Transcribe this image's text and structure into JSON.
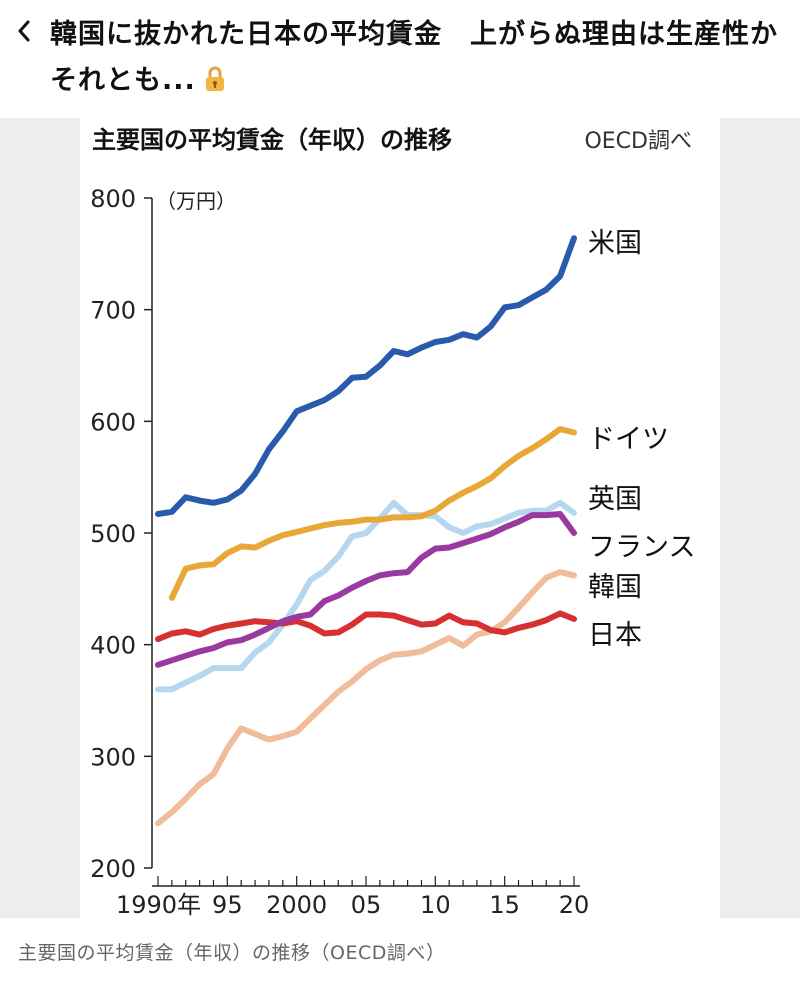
{
  "header": {
    "back_icon": "chevron-left-icon",
    "title": "韓国に抜かれた日本の平均賃金　上がらぬ理由は生産性かそれとも...",
    "lock_icon": "lock-icon"
  },
  "caption": "主要国の平均賃金（年収）の推移（OECD調べ）",
  "colors": {
    "us": "#2a5aab",
    "germany": "#e8a838",
    "uk": "#b6d8ef",
    "france": "#9a3aa0",
    "korea": "#f0bc9a",
    "japan": "#d63030",
    "figure_bg": "#ededed"
  },
  "chart_data": {
    "type": "line",
    "title": "主要国の平均賃金（年収）の推移",
    "source": "OECD調べ",
    "unit_label": "（万円）",
    "ylim": [
      200,
      800
    ],
    "y_ticks": [
      200,
      300,
      400,
      500,
      600,
      700,
      800
    ],
    "xlim": [
      1990,
      2020
    ],
    "x_ticks": [
      {
        "year": 1990,
        "label": "1990年"
      },
      {
        "year": 1995,
        "label": "95"
      },
      {
        "year": 2000,
        "label": "2000"
      },
      {
        "year": 2005,
        "label": "05"
      },
      {
        "year": 2010,
        "label": "10"
      },
      {
        "year": 2015,
        "label": "15"
      },
      {
        "year": 2020,
        "label": "20"
      }
    ],
    "grid": false,
    "series": [
      {
        "key": "us",
        "name": "米国",
        "color": "#2a5aab",
        "x": [
          1990,
          1991,
          1992,
          1993,
          1994,
          1995,
          1996,
          1997,
          1998,
          1999,
          2000,
          2001,
          2002,
          2003,
          2004,
          2005,
          2006,
          2007,
          2008,
          2009,
          2010,
          2011,
          2012,
          2013,
          2014,
          2015,
          2016,
          2017,
          2018,
          2019,
          2020
        ],
        "values": [
          517,
          519,
          532,
          529,
          527,
          530,
          538,
          553,
          575,
          591,
          609,
          614,
          619,
          627,
          639,
          640,
          650,
          663,
          660,
          666,
          671,
          673,
          678,
          675,
          685,
          702,
          704,
          711,
          718,
          730,
          764
        ]
      },
      {
        "key": "germany",
        "name": "ドイツ",
        "color": "#e8a838",
        "x": [
          1991,
          1992,
          1993,
          1994,
          1995,
          1996,
          1997,
          1998,
          1999,
          2000,
          2001,
          2002,
          2003,
          2004,
          2005,
          2006,
          2007,
          2008,
          2009,
          2010,
          2011,
          2012,
          2013,
          2014,
          2015,
          2016,
          2017,
          2018,
          2019,
          2020
        ],
        "values": [
          442,
          468,
          471,
          472,
          482,
          488,
          487,
          493,
          498,
          501,
          504,
          507,
          509,
          510,
          512,
          512,
          514,
          514,
          515,
          520,
          529,
          536,
          542,
          549,
          560,
          569,
          576,
          584,
          593,
          590
        ]
      },
      {
        "key": "uk",
        "name": "英国",
        "color": "#b6d8ef",
        "x": [
          1990,
          1991,
          1992,
          1993,
          1994,
          1995,
          1996,
          1997,
          1998,
          1999,
          2000,
          2001,
          2002,
          2003,
          2004,
          2005,
          2006,
          2007,
          2008,
          2009,
          2010,
          2011,
          2012,
          2013,
          2014,
          2015,
          2016,
          2017,
          2018,
          2019,
          2020
        ],
        "values": [
          360,
          360,
          366,
          372,
          379,
          379,
          379,
          393,
          402,
          418,
          436,
          458,
          466,
          479,
          497,
          500,
          513,
          527,
          516,
          516,
          515,
          505,
          500,
          506,
          508,
          513,
          518,
          520,
          520,
          527,
          518
        ]
      },
      {
        "key": "france",
        "name": "フランス",
        "color": "#9a3aa0",
        "x": [
          1990,
          1991,
          1992,
          1993,
          1994,
          1995,
          1996,
          1997,
          1998,
          1999,
          2000,
          2001,
          2002,
          2003,
          2004,
          2005,
          2006,
          2007,
          2008,
          2009,
          2010,
          2011,
          2012,
          2013,
          2014,
          2015,
          2016,
          2017,
          2018,
          2019,
          2020
        ],
        "values": [
          382,
          386,
          390,
          394,
          397,
          402,
          404,
          409,
          415,
          421,
          425,
          427,
          439,
          444,
          451,
          457,
          462,
          464,
          465,
          478,
          486,
          487,
          491,
          495,
          499,
          505,
          510,
          516,
          516,
          517,
          500
        ]
      },
      {
        "key": "korea",
        "name": "韓国",
        "color": "#f0bc9a",
        "x": [
          1990,
          1991,
          1992,
          1993,
          1994,
          1995,
          1996,
          1997,
          1998,
          1999,
          2000,
          2001,
          2002,
          2003,
          2004,
          2005,
          2006,
          2007,
          2008,
          2009,
          2010,
          2011,
          2012,
          2013,
          2014,
          2015,
          2016,
          2017,
          2018,
          2019,
          2020
        ],
        "values": [
          240,
          250,
          262,
          275,
          284,
          307,
          325,
          320,
          315,
          318,
          322,
          334,
          346,
          358,
          367,
          378,
          386,
          391,
          392,
          394,
          400,
          406,
          399,
          409,
          412,
          420,
          433,
          447,
          460,
          465,
          462
        ]
      },
      {
        "key": "japan",
        "name": "日本",
        "color": "#d63030",
        "x": [
          1990,
          1991,
          1992,
          1993,
          1994,
          1995,
          1996,
          1997,
          1998,
          1999,
          2000,
          2001,
          2002,
          2003,
          2004,
          2005,
          2006,
          2007,
          2008,
          2009,
          2010,
          2011,
          2012,
          2013,
          2014,
          2015,
          2016,
          2017,
          2018,
          2019,
          2020
        ],
        "values": [
          405,
          410,
          412,
          409,
          414,
          417,
          419,
          421,
          420,
          419,
          421,
          417,
          410,
          411,
          418,
          427,
          427,
          426,
          422,
          418,
          419,
          426,
          420,
          419,
          413,
          411,
          415,
          418,
          422,
          428,
          423
        ]
      }
    ]
  }
}
